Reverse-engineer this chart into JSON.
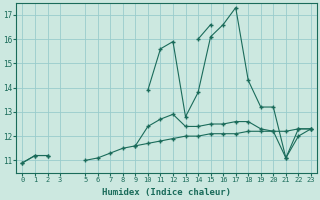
{
  "xlabel": "Humidex (Indice chaleur)",
  "background_color": "#cce8e0",
  "grid_color": "#99cccc",
  "line_color": "#1a6b5a",
  "x_values": [
    0,
    1,
    2,
    3,
    4,
    5,
    6,
    7,
    8,
    9,
    10,
    11,
    12,
    13,
    14,
    15,
    16,
    17,
    18,
    19,
    20,
    21,
    22,
    23
  ],
  "series_flat": [
    10.9,
    11.2,
    11.2,
    null,
    null,
    11.0,
    11.1,
    11.3,
    11.5,
    11.6,
    11.7,
    11.8,
    11.9,
    12.0,
    12.0,
    12.1,
    12.1,
    12.1,
    12.2,
    12.2,
    12.2,
    12.2,
    12.3,
    12.3
  ],
  "series_mid": [
    10.9,
    11.2,
    11.2,
    null,
    null,
    null,
    null,
    null,
    null,
    11.6,
    12.4,
    12.7,
    12.9,
    12.4,
    12.4,
    12.5,
    12.5,
    12.6,
    12.6,
    12.3,
    12.2,
    11.1,
    12.3,
    12.3
  ],
  "series_peak": [
    null,
    null,
    null,
    null,
    null,
    null,
    null,
    null,
    null,
    null,
    13.9,
    15.6,
    15.9,
    12.8,
    13.8,
    16.1,
    16.6,
    17.3,
    14.3,
    13.2,
    13.2,
    11.1,
    12.0,
    12.3
  ],
  "series_top": [
    null,
    null,
    null,
    null,
    null,
    null,
    null,
    null,
    null,
    null,
    null,
    null,
    null,
    null,
    16.0,
    16.6,
    null,
    null,
    null,
    null,
    null,
    null,
    null,
    null
  ],
  "ylim": [
    10.5,
    17.5
  ],
  "xlim": [
    -0.5,
    23.5
  ],
  "yticks": [
    11,
    12,
    13,
    14,
    15,
    16,
    17
  ],
  "xticks": [
    0,
    1,
    2,
    3,
    5,
    6,
    7,
    8,
    9,
    10,
    11,
    12,
    13,
    14,
    15,
    16,
    17,
    18,
    19,
    20,
    21,
    22,
    23
  ]
}
